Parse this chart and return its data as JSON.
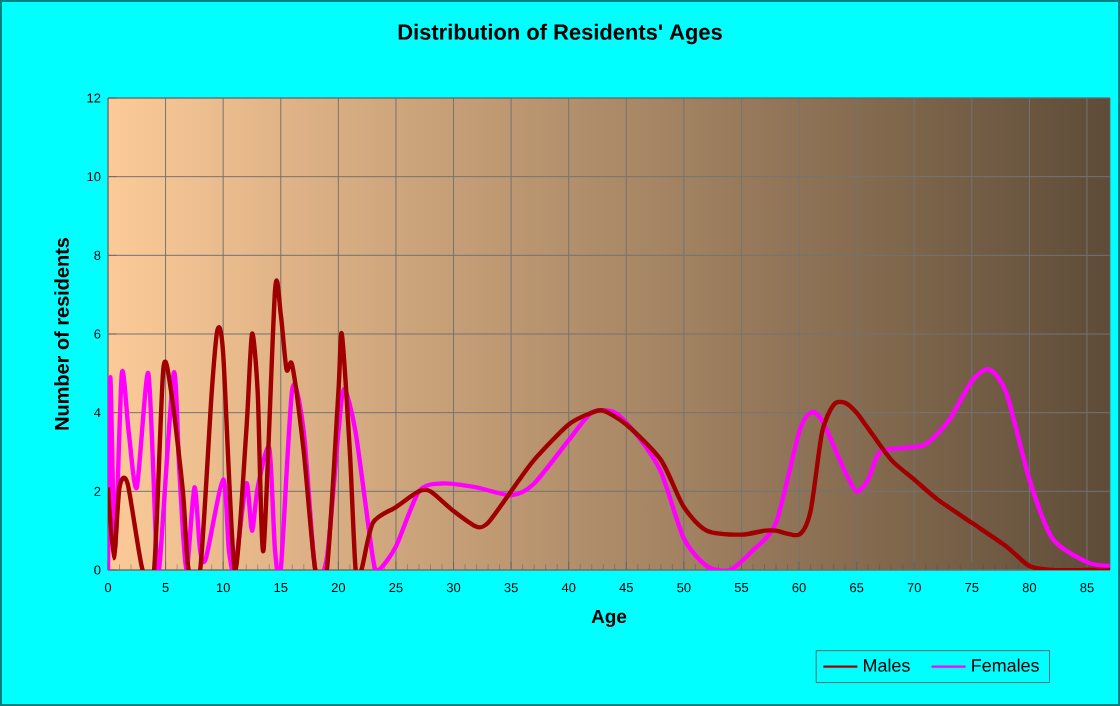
{
  "chart_data": {
    "type": "line",
    "title": "Distribution of Residents' Ages",
    "xlabel": "Age",
    "ylabel": "Number of residents",
    "xlim": [
      0,
      87
    ],
    "xticks": [
      0,
      5,
      10,
      15,
      20,
      25,
      30,
      35,
      40,
      45,
      50,
      55,
      60,
      65,
      70,
      75,
      80,
      85
    ],
    "ylim": [
      0,
      12
    ],
    "yticks": [
      0,
      2,
      4,
      6,
      8,
      10,
      12
    ],
    "grid": true,
    "legend": "bottom right",
    "marker": "none",
    "line_style": "solid",
    "series": [
      {
        "name": "Males",
        "color": "#a00000",
        "x": [
          0,
          0.5,
          1,
          1.7,
          3,
          4,
          4.8,
          5.5,
          6.5,
          7,
          8,
          9,
          9.5,
          10,
          11,
          12,
          12.5,
          13,
          13.5,
          14.5,
          15,
          15.5,
          16,
          17,
          18,
          19,
          20,
          20.3,
          21,
          21.5,
          22,
          23,
          25,
          27,
          28,
          30,
          32,
          33,
          35,
          37,
          40,
          42,
          43,
          45,
          48,
          50,
          52,
          55,
          57,
          58,
          60,
          61,
          62,
          63,
          64,
          65,
          66,
          68,
          70,
          72,
          75,
          78,
          80,
          82,
          85,
          87
        ],
        "values": [
          2.1,
          0.3,
          2.1,
          2.2,
          0,
          0,
          5.1,
          4.5,
          2,
          0,
          0,
          4.5,
          6.1,
          5.5,
          0,
          3.5,
          6,
          4.5,
          0.5,
          7.1,
          6.5,
          5.1,
          5.2,
          3,
          0,
          0,
          4.5,
          6,
          3,
          0,
          0,
          1.2,
          1.6,
          2,
          2,
          1.5,
          1.1,
          1.2,
          2,
          2.8,
          3.7,
          4,
          4.05,
          3.7,
          2.8,
          1.6,
          1,
          0.9,
          1,
          1,
          0.9,
          1.5,
          3.5,
          4.2,
          4.25,
          4,
          3.6,
          2.8,
          2.3,
          1.8,
          1.2,
          0.6,
          0.1,
          0,
          0,
          0
        ]
      },
      {
        "name": "Females",
        "color": "#ff00ff",
        "x": [
          0,
          0.2,
          0.6,
          1.2,
          1.8,
          2.5,
          3.5,
          4.2,
          4.5,
          5.7,
          6.2,
          6.8,
          7.5,
          8,
          8.5,
          10,
          10.5,
          11,
          12,
          12.5,
          13,
          14,
          14.5,
          15,
          16,
          17,
          18,
          19,
          20,
          20.5,
          21.5,
          23,
          23.5,
          25,
          27,
          29,
          32,
          35,
          37,
          40,
          42,
          44,
          46,
          48,
          50,
          52,
          54,
          56,
          58,
          60,
          61,
          62,
          64,
          65,
          66,
          67,
          69,
          71,
          73,
          75,
          76.5,
          78,
          80,
          82,
          85,
          87
        ],
        "values": [
          0,
          4.9,
          0.5,
          5,
          3.5,
          2.1,
          5,
          0.5,
          0.2,
          5,
          2.5,
          0,
          2.1,
          0.5,
          0.3,
          2.3,
          0.5,
          0,
          2.2,
          1,
          2.1,
          3.1,
          0.5,
          0,
          4.6,
          3.5,
          0,
          0.3,
          3.5,
          4.6,
          3.5,
          0.3,
          0,
          0.6,
          2,
          2.2,
          2.1,
          1.9,
          2.2,
          3.3,
          4,
          4,
          3.4,
          2.5,
          0.8,
          0.1,
          0,
          0.5,
          1.2,
          3.5,
          4,
          3.8,
          2.5,
          2,
          2.3,
          3,
          3.1,
          3.2,
          3.8,
          4.8,
          5.1,
          4.5,
          2.3,
          0.8,
          0.2,
          0.1
        ]
      }
    ]
  }
}
